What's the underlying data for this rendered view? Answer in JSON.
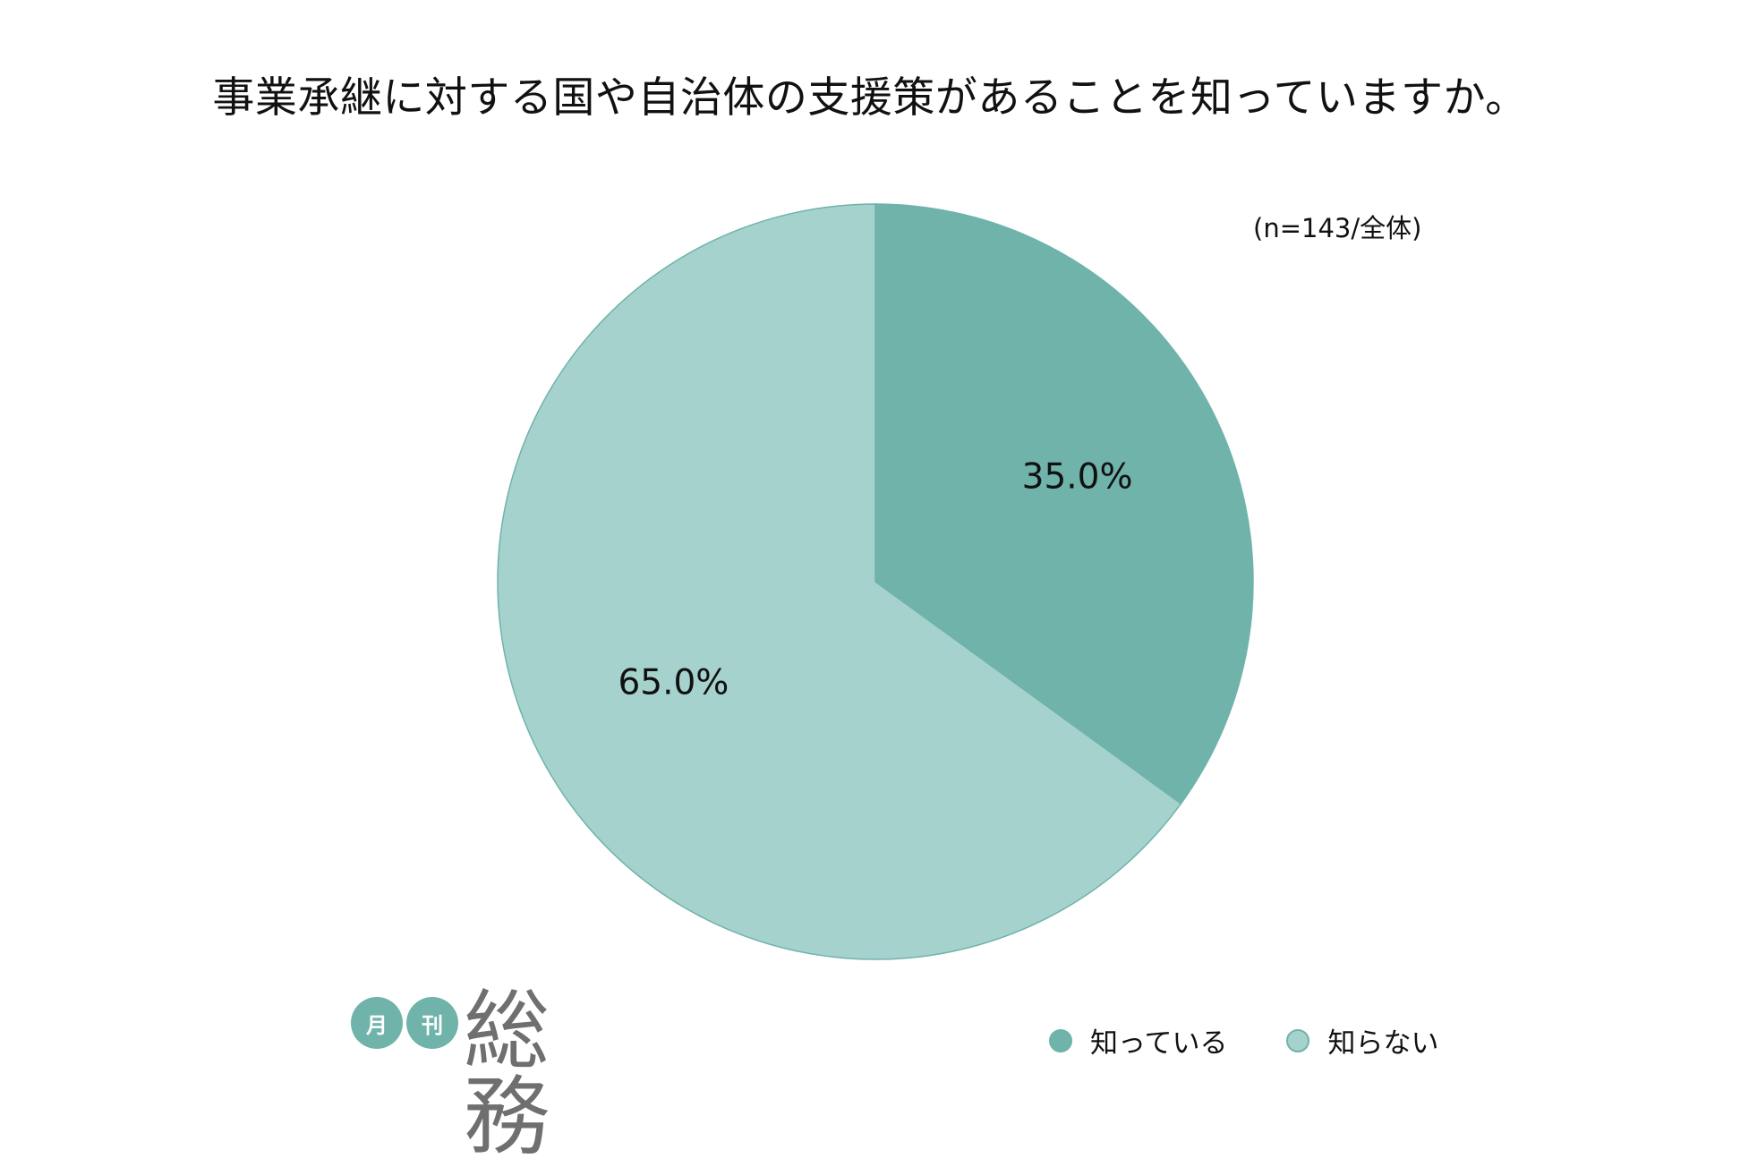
{
  "chart_data": {
    "type": "pie",
    "title": "事業承継に対する国や自治体の支援策があることを知っていますか。",
    "sample_note": "(n=143/全体)",
    "categories": [
      "知っている",
      "知らない"
    ],
    "values": [
      35.0,
      65.0
    ],
    "value_labels": [
      "35.0%",
      "65.0%"
    ],
    "colors": [
      "#6fb3ab",
      "#a6d2cd"
    ],
    "border_color": "#6fb3ab",
    "start_angle": "12 o'clock, clockwise",
    "legend_position": "bottom-right"
  },
  "logo": {
    "badge1": "月",
    "badge2": "刊",
    "name": "総務"
  }
}
